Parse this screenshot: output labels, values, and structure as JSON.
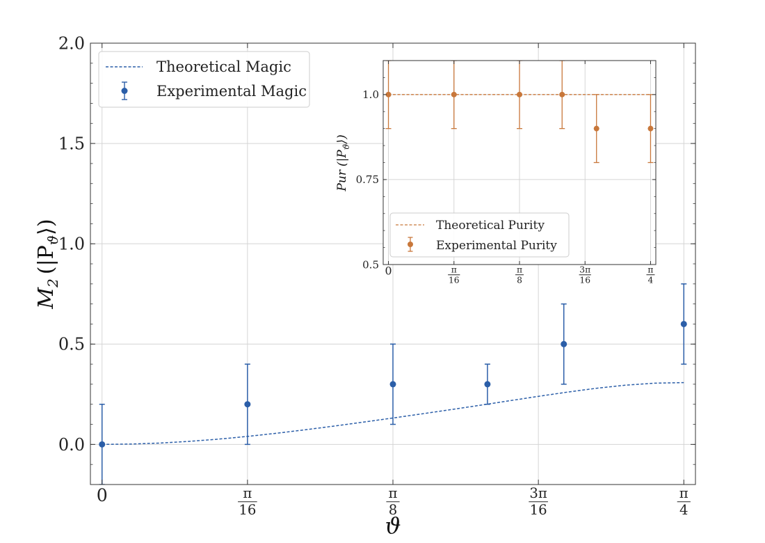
{
  "chart_data": [
    {
      "type": "line",
      "panel": "main",
      "xlabel": "ϑ",
      "ylabel": "M₂ (|P_ϑ⟩)",
      "ylabel_main": "M",
      "ylabel_sub": "2",
      "ylabel_rest_open": "(|P",
      "ylabel_sub2": "ϑ",
      "ylabel_rest_close": "⟩)",
      "xlim": [
        -0.0157,
        0.8011
      ],
      "ylim": [
        -0.2,
        2.0
      ],
      "grid": true,
      "legend_position": "top-left",
      "x_ticks": [
        {
          "value": 0,
          "num": "0",
          "den": ""
        },
        {
          "value": 0.19635,
          "num": "π",
          "den": "16"
        },
        {
          "value": 0.3927,
          "num": "π",
          "den": "8"
        },
        {
          "value": 0.58905,
          "num": "3π",
          "den": "16"
        },
        {
          "value": 0.7854,
          "num": "π",
          "den": "4"
        }
      ],
      "y_ticks": [
        {
          "value": 0.0,
          "label": "0.0"
        },
        {
          "value": 0.5,
          "label": "0.5"
        },
        {
          "value": 1.0,
          "label": "1.0"
        },
        {
          "value": 1.5,
          "label": "1.5"
        },
        {
          "value": 2.0,
          "label": "2.0"
        }
      ],
      "series": [
        {
          "name": "Theoretical Magic",
          "kind": "dashed-line",
          "color": "#2b5ea8",
          "x": [
            0,
            0.0393,
            0.0785,
            0.1178,
            0.1571,
            0.1963,
            0.2356,
            0.2749,
            0.3142,
            0.3534,
            0.3927,
            0.432,
            0.4712,
            0.5105,
            0.5498,
            0.589,
            0.6283,
            0.6676,
            0.7069,
            0.7461,
            0.7854
          ],
          "y": [
            0,
            0.0017,
            0.0068,
            0.0151,
            0.0262,
            0.0398,
            0.0556,
            0.0731,
            0.0918,
            0.1114,
            0.1316,
            0.1523,
            0.1735,
            0.1952,
            0.2174,
            0.2395,
            0.2607,
            0.2799,
            0.2954,
            0.3052,
            0.3081
          ]
        },
        {
          "name": "Experimental Magic",
          "kind": "errorbar",
          "color": "#2b5ea8",
          "x": [
            0,
            0.19635,
            0.3927,
            0.5203,
            0.6234,
            0.7854
          ],
          "y": [
            0.0,
            0.2,
            0.3,
            0.3,
            0.5,
            0.6
          ],
          "yerr": [
            0.2,
            0.2,
            0.2,
            0.1,
            0.2,
            0.2
          ]
        }
      ]
    },
    {
      "type": "line",
      "panel": "inset",
      "ylabel": "Pur (|P_ϑ⟩)",
      "ylabel_main": "Pur",
      "ylabel_rest_open": "(|P",
      "ylabel_sub2": "ϑ",
      "ylabel_rest_close": "⟩)",
      "xlim": [
        -0.0157,
        0.8011
      ],
      "ylim": [
        0.5,
        1.1
      ],
      "grid": true,
      "legend_position": "bottom-left",
      "x_ticks": [
        {
          "value": 0,
          "num": "0",
          "den": ""
        },
        {
          "value": 0.19635,
          "num": "π",
          "den": "16"
        },
        {
          "value": 0.3927,
          "num": "π",
          "den": "8"
        },
        {
          "value": 0.58905,
          "num": "3π",
          "den": "16"
        },
        {
          "value": 0.7854,
          "num": "π",
          "den": "4"
        }
      ],
      "y_ticks": [
        {
          "value": 0.5,
          "label": "0.5"
        },
        {
          "value": 0.75,
          "label": "0.75"
        },
        {
          "value": 1.0,
          "label": "1.0"
        }
      ],
      "series": [
        {
          "name": "Theoretical Purity",
          "kind": "dashed-line",
          "color": "#c8773a",
          "x": [
            0,
            0.7854
          ],
          "y": [
            1.0,
            1.0
          ]
        },
        {
          "name": "Experimental Purity",
          "kind": "errorbar",
          "color": "#c8773a",
          "x": [
            0,
            0.19635,
            0.3927,
            0.5203,
            0.6234,
            0.7854
          ],
          "y": [
            1.0,
            1.0,
            1.0,
            1.0,
            0.9,
            0.9
          ],
          "yerr": [
            0.1,
            0.1,
            0.1,
            0.1,
            0.1,
            0.1
          ]
        }
      ]
    }
  ]
}
